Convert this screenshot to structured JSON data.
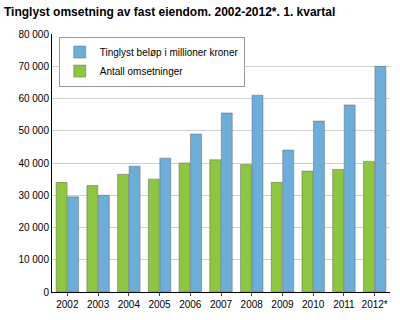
{
  "chart_data": {
    "type": "bar",
    "title": "Tinglyst omsetning av fast eiendom. 2002-2012*. 1. kvartal",
    "categories": [
      "2002",
      "2003",
      "2004",
      "2005",
      "2006",
      "2007",
      "2008",
      "2009",
      "2010",
      "2011",
      "2012*"
    ],
    "series": [
      {
        "name": "Antall omsetninger",
        "color": "#8dc63f",
        "values": [
          34000,
          33000,
          36500,
          35000,
          40000,
          41000,
          39500,
          34000,
          37500,
          38000,
          40500
        ]
      },
      {
        "name": "Tinglyst beløp i millioner kroner",
        "color": "#6aaed9",
        "values": [
          29500,
          30000,
          39000,
          41500,
          49000,
          55500,
          61000,
          44000,
          53000,
          58000,
          70000
        ]
      }
    ],
    "ylim": [
      0,
      80000
    ],
    "yticks": [
      0,
      {
        "value": 10000,
        "label": "10 000"
      },
      {
        "value": 20000,
        "label": "20 000"
      },
      {
        "value": 30000,
        "label": "30 000"
      },
      {
        "value": 40000,
        "label": "40 000"
      },
      {
        "value": 50000,
        "label": "50 000"
      },
      {
        "value": 60000,
        "label": "60 000"
      },
      {
        "value": 70000,
        "label": "70 000"
      },
      {
        "value": 80000,
        "label": "80 000"
      }
    ],
    "grid": true,
    "legend": "top-left"
  }
}
